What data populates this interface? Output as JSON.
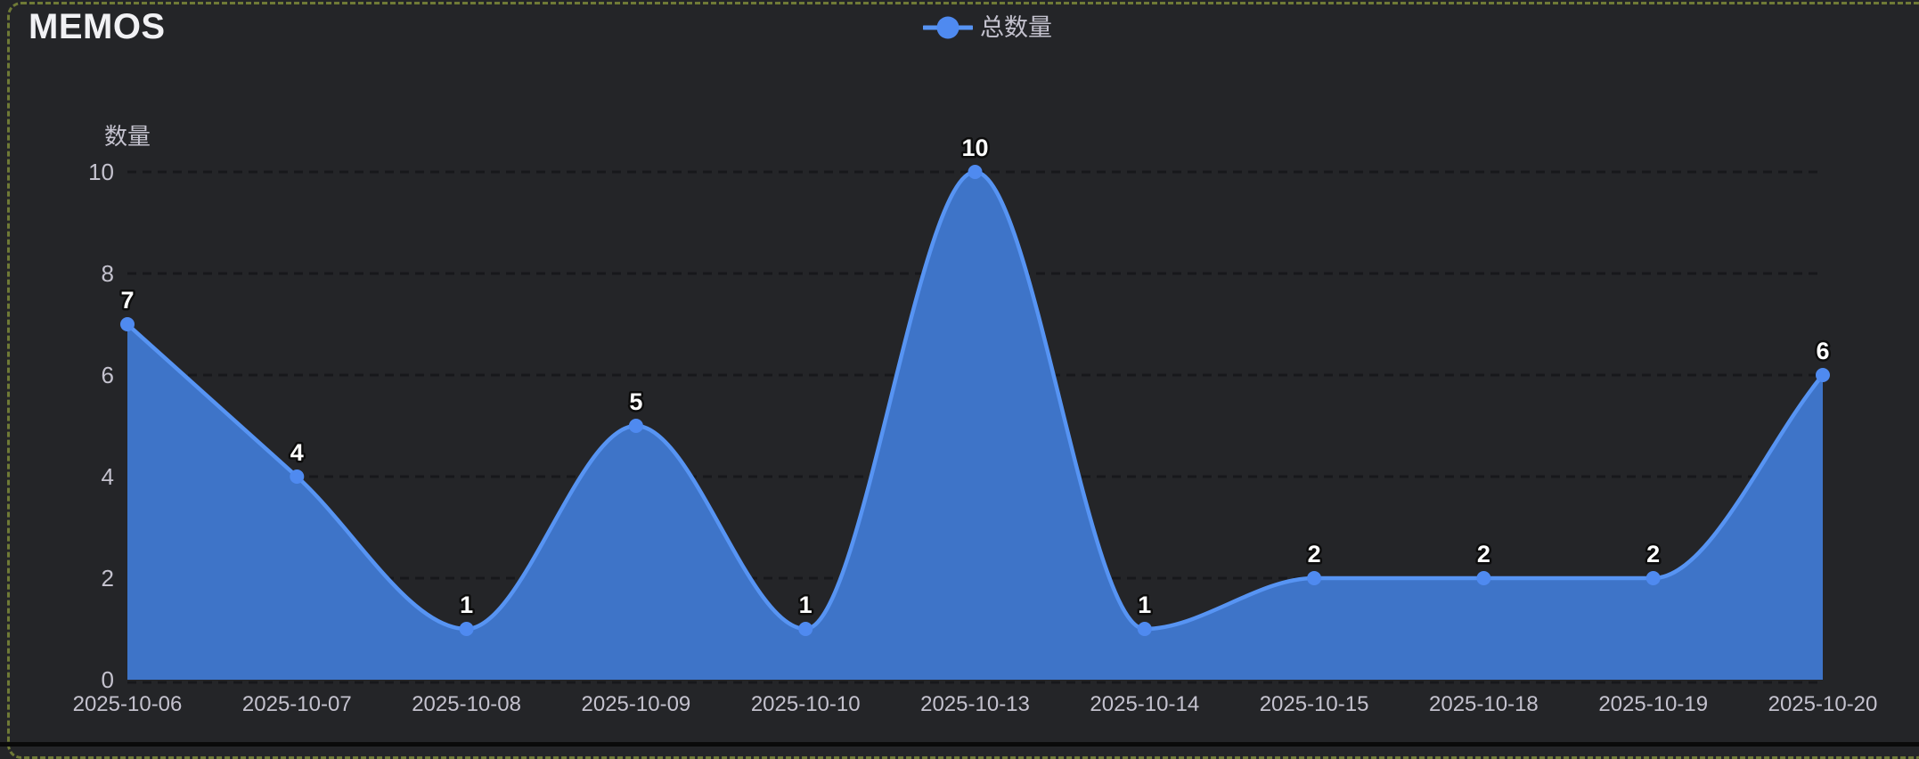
{
  "page": {
    "title": "MEMOS",
    "background_color": "#242528",
    "border_color": "#6f7a36"
  },
  "legend": {
    "items": [
      {
        "label": "总数量"
      }
    ]
  },
  "chart_data": {
    "type": "area",
    "title": "MEMOS",
    "series": [
      {
        "name": "总数量",
        "values": [
          7,
          4,
          1,
          5,
          1,
          10,
          1,
          2,
          2,
          2,
          6
        ]
      }
    ],
    "categories": [
      "2025-10-06",
      "2025-10-07",
      "2025-10-08",
      "2025-10-09",
      "2025-10-10",
      "2025-10-13",
      "2025-10-14",
      "2025-10-15",
      "2025-10-18",
      "2025-10-19",
      "2025-10-20"
    ],
    "point_labels": [
      "7",
      "4",
      "1",
      "5",
      "1",
      "10",
      "1",
      "2",
      "2",
      "2",
      "6"
    ],
    "xlabel": "",
    "ylabel": "数量",
    "ylim": [
      0,
      10
    ],
    "yticks": [
      0,
      2,
      4,
      6,
      8,
      10
    ],
    "grid": "horizontal-dashed",
    "legend_position": "top-center",
    "smooth": true,
    "colors": {
      "line": "#5794f3",
      "fill": "#3e74c8",
      "marker": "#4f8af0",
      "gridline": "#17181b",
      "tick_text": "#c4c2ce",
      "axis_title_text": "#c4c2ce",
      "point_label_text": "#ffffff",
      "point_label_outline": "#0d0d0d",
      "title_text": "#f1f1f4",
      "legend_text": "#c4c2ce"
    }
  }
}
